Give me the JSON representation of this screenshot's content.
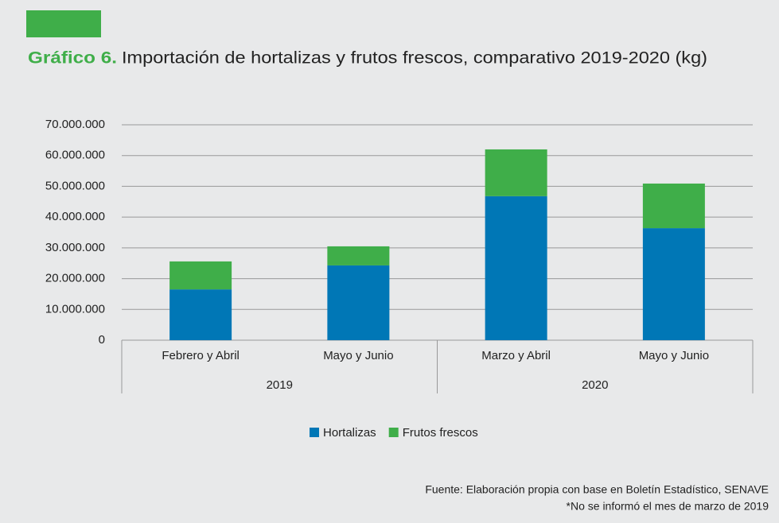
{
  "chart_data": {
    "type": "stacked_bar",
    "title_label": "Gráfico 6.",
    "title": "Importación de hortalizas y frutos frescos, comparativo 2019-2020 (kg)",
    "categories": [
      "Febrero y Abril",
      "Mayo y Junio",
      "Marzo y Abril",
      "Mayo y Junio"
    ],
    "category_groups": [
      "2019",
      "2019",
      "2020",
      "2020"
    ],
    "series": [
      {
        "name": "Hortalizas",
        "color": "#0077b6",
        "values": [
          16500000,
          24300000,
          46800000,
          36400000
        ]
      },
      {
        "name": "Frutos frescos",
        "color": "#3fae49",
        "values": [
          9100000,
          6200000,
          15200000,
          14500000
        ]
      }
    ],
    "ylim": [
      0,
      70000000
    ],
    "yticks": [
      0,
      {
        "value": 10000000,
        "label": "10.000.000"
      },
      {
        "value": 20000000,
        "label": "20.000.000"
      },
      {
        "value": 30000000,
        "label": "30.000.000"
      },
      {
        "value": 40000000,
        "label": "40.000.000"
      },
      {
        "value": 50000000,
        "label": "50.000.000"
      },
      {
        "value": 60000000,
        "label": "60.000.000"
      },
      {
        "value": 70000000,
        "label": "70.000.000"
      }
    ],
    "grid": true,
    "legend": "bottom",
    "source": "Fuente: Elaboración propia con base en Boletín Estadístico, SENAVE",
    "note": "*No se informó el mes de marzo de 2019"
  }
}
